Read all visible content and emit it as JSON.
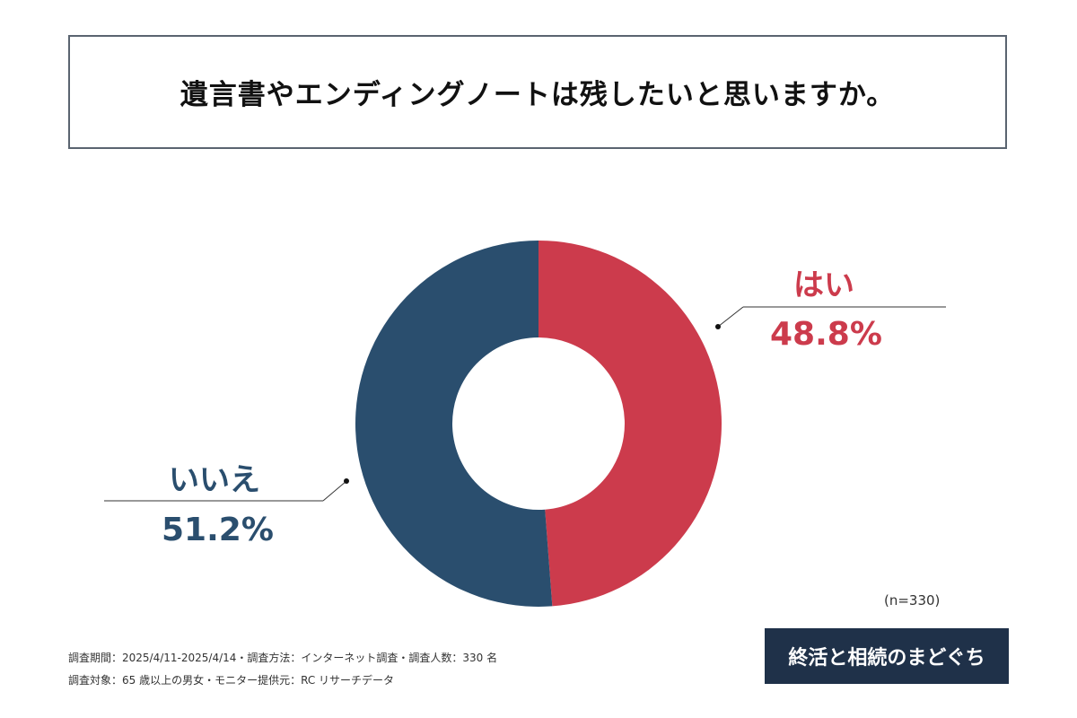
{
  "title": "遺言書やエンディングノートは残したいと思いますか。",
  "chart_data": {
    "type": "pie",
    "variant": "donut",
    "categories": [
      "はい",
      "いいえ"
    ],
    "values": [
      48.8,
      51.2
    ],
    "value_labels": [
      "48.8%",
      "51.2%"
    ],
    "colors": [
      "#cc3b4c",
      "#2a4e6e"
    ],
    "sample_size": "(n=330)"
  },
  "footnotes": [
    "調査期間：2025/4/11-2025/4/14・調査方法：インターネット調査・調査人数：330 名",
    "調査対象：65 歳以上の男女・モニター提供元：RC リサーチデータ"
  ],
  "logo": "終活と相続のまどぐち"
}
